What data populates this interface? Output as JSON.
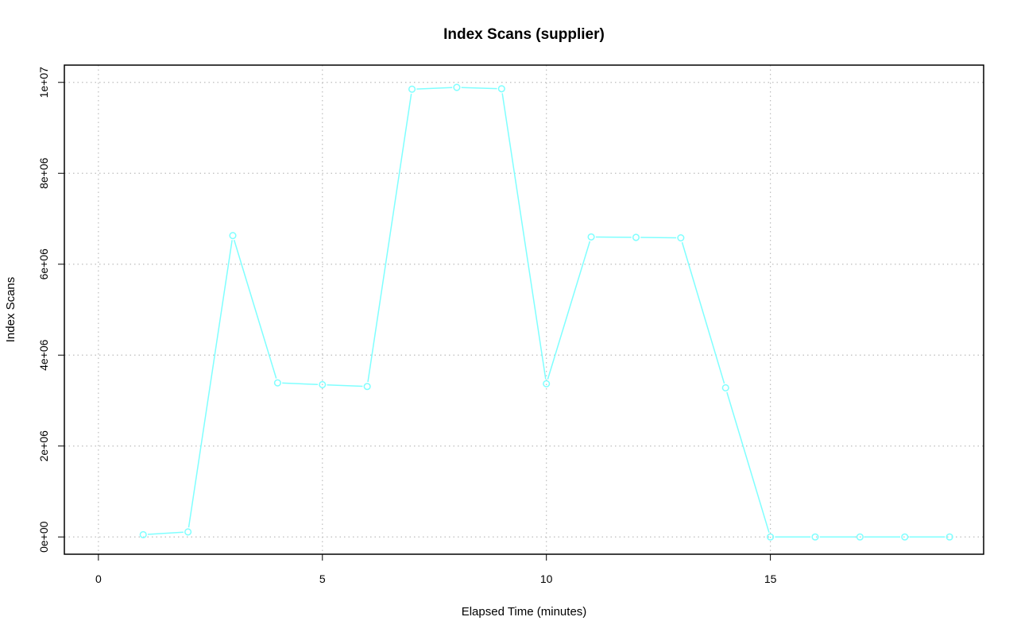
{
  "chart_data": {
    "type": "line",
    "title": "Index Scans (supplier)",
    "xlabel": "Elapsed Time (minutes)",
    "ylabel": "Index Scans",
    "xlim": [
      -0.76,
      19.76
    ],
    "ylim": [
      -380000,
      10380000
    ],
    "x_ticks": [
      0,
      5,
      10,
      15
    ],
    "x_tick_labels": [
      "0",
      "5",
      "10",
      "15"
    ],
    "y_ticks": [
      0,
      2000000,
      4000000,
      6000000,
      8000000,
      10000000
    ],
    "y_tick_labels": [
      "0e+00",
      "2e+06",
      "4e+06",
      "6e+06",
      "8e+06",
      "1e+07"
    ],
    "grid": true,
    "series": [
      {
        "color": "#7fffff",
        "marker": "circle",
        "x": [
          1,
          2,
          3,
          4,
          5,
          6,
          7,
          8,
          9,
          10,
          11,
          12,
          13,
          14,
          15,
          16,
          17,
          18,
          19
        ],
        "y": [
          50000,
          110000,
          6630000,
          3390000,
          3350000,
          3310000,
          9850000,
          9890000,
          9860000,
          3370000,
          6600000,
          6590000,
          6580000,
          3280000,
          0,
          0,
          0,
          0,
          0
        ]
      }
    ]
  }
}
